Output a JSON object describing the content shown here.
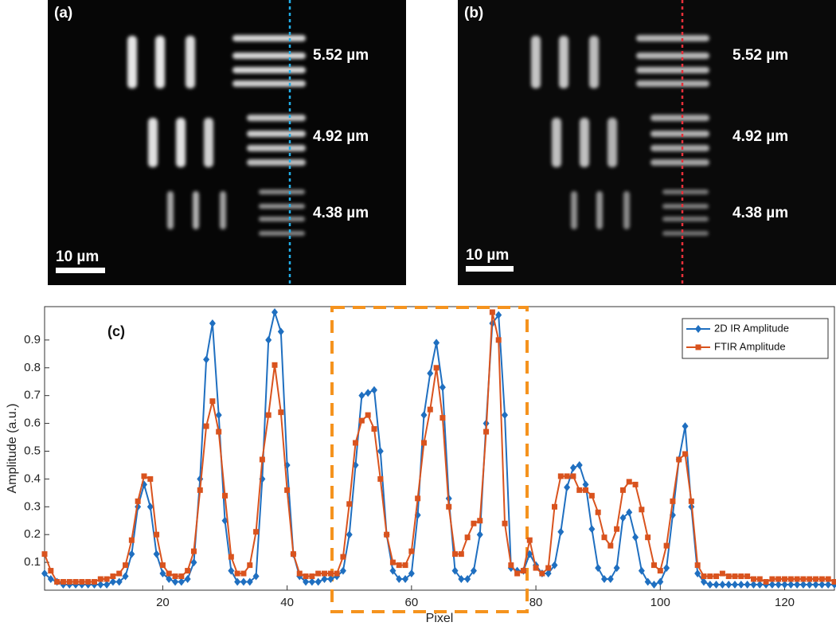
{
  "panels": [
    {
      "label": "(a)",
      "annotations": [
        "5.52 µm",
        "4.92 µm",
        "4.38 µm"
      ],
      "scale_bar": "10 µm"
    },
    {
      "label": "(b)",
      "annotations": [
        "5.52 µm",
        "4.92 µm",
        "4.38 µm"
      ],
      "scale_bar": "10 µm"
    }
  ],
  "chart_data": {
    "type": "line",
    "label": "(c)",
    "x_label": "Pixel",
    "y_label": "Amplitude (a.u.)",
    "xlim": [
      1,
      128
    ],
    "ylim": [
      0,
      1.02
    ],
    "xticks": [
      20,
      40,
      60,
      80,
      100,
      120
    ],
    "yticks": [
      0.1,
      0.2,
      0.3,
      0.4,
      0.5,
      0.6,
      0.7,
      0.8,
      0.9
    ],
    "legend": "upper right",
    "x": [
      1,
      2,
      3,
      4,
      5,
      6,
      7,
      8,
      9,
      10,
      11,
      12,
      13,
      14,
      15,
      16,
      17,
      18,
      19,
      20,
      21,
      22,
      23,
      24,
      25,
      26,
      27,
      28,
      29,
      30,
      31,
      32,
      33,
      34,
      35,
      36,
      37,
      38,
      39,
      40,
      41,
      42,
      43,
      44,
      45,
      46,
      47,
      48,
      49,
      50,
      51,
      52,
      53,
      54,
      55,
      56,
      57,
      58,
      59,
      60,
      61,
      62,
      63,
      64,
      65,
      66,
      67,
      68,
      69,
      70,
      71,
      72,
      73,
      74,
      75,
      76,
      77,
      78,
      79,
      80,
      81,
      82,
      83,
      84,
      85,
      86,
      87,
      88,
      89,
      90,
      91,
      92,
      93,
      94,
      95,
      96,
      97,
      98,
      99,
      100,
      101,
      102,
      103,
      104,
      105,
      106,
      107,
      108,
      109,
      110,
      111,
      112,
      113,
      114,
      115,
      116,
      117,
      118,
      119,
      120,
      121,
      122,
      123,
      124,
      125,
      126,
      127,
      128
    ],
    "series": [
      {
        "name": "2D IR Amplitude",
        "color": "#1f6fc0",
        "marker": "diamond",
        "values": [
          0.06,
          0.04,
          0.03,
          0.02,
          0.02,
          0.02,
          0.02,
          0.02,
          0.02,
          0.02,
          0.02,
          0.03,
          0.03,
          0.05,
          0.13,
          0.3,
          0.38,
          0.3,
          0.13,
          0.06,
          0.04,
          0.03,
          0.03,
          0.04,
          0.1,
          0.4,
          0.83,
          0.96,
          0.63,
          0.25,
          0.07,
          0.03,
          0.03,
          0.03,
          0.05,
          0.4,
          0.9,
          1.0,
          0.93,
          0.45,
          0.13,
          0.05,
          0.03,
          0.03,
          0.03,
          0.04,
          0.04,
          0.05,
          0.07,
          0.2,
          0.45,
          0.7,
          0.71,
          0.72,
          0.5,
          0.2,
          0.07,
          0.04,
          0.04,
          0.06,
          0.27,
          0.63,
          0.78,
          0.89,
          0.73,
          0.33,
          0.07,
          0.04,
          0.04,
          0.07,
          0.2,
          0.6,
          0.96,
          0.99,
          0.63,
          0.08,
          0.07,
          0.07,
          0.13,
          0.09,
          0.06,
          0.06,
          0.09,
          0.21,
          0.37,
          0.44,
          0.45,
          0.38,
          0.22,
          0.08,
          0.04,
          0.04,
          0.08,
          0.26,
          0.28,
          0.19,
          0.07,
          0.03,
          0.02,
          0.03,
          0.08,
          0.27,
          0.47,
          0.59,
          0.3,
          0.06,
          0.03,
          0.02,
          0.02,
          0.02,
          0.02,
          0.02,
          0.02,
          0.02,
          0.02,
          0.02,
          0.02,
          0.02,
          0.02,
          0.02,
          0.02,
          0.02,
          0.02,
          0.02,
          0.02,
          0.02,
          0.02,
          0.02
        ]
      },
      {
        "name": "FTIR Amplitude",
        "color": "#d9531e",
        "marker": "square",
        "values": [
          0.13,
          0.07,
          0.03,
          0.03,
          0.03,
          0.03,
          0.03,
          0.03,
          0.03,
          0.04,
          0.04,
          0.05,
          0.06,
          0.09,
          0.18,
          0.32,
          0.41,
          0.4,
          0.2,
          0.09,
          0.06,
          0.05,
          0.05,
          0.07,
          0.14,
          0.36,
          0.59,
          0.68,
          0.57,
          0.34,
          0.12,
          0.06,
          0.06,
          0.09,
          0.21,
          0.47,
          0.63,
          0.81,
          0.64,
          0.36,
          0.13,
          0.06,
          0.05,
          0.05,
          0.06,
          0.06,
          0.06,
          0.06,
          0.12,
          0.31,
          0.53,
          0.61,
          0.63,
          0.58,
          0.4,
          0.2,
          0.1,
          0.09,
          0.09,
          0.14,
          0.33,
          0.53,
          0.65,
          0.8,
          0.62,
          0.3,
          0.13,
          0.13,
          0.19,
          0.24,
          0.25,
          0.57,
          1.0,
          0.9,
          0.24,
          0.09,
          0.06,
          0.07,
          0.18,
          0.08,
          0.06,
          0.08,
          0.3,
          0.41,
          0.41,
          0.41,
          0.36,
          0.36,
          0.34,
          0.28,
          0.19,
          0.16,
          0.22,
          0.36,
          0.39,
          0.38,
          0.29,
          0.19,
          0.09,
          0.07,
          0.16,
          0.32,
          0.47,
          0.49,
          0.32,
          0.09,
          0.05,
          0.05,
          0.05,
          0.06,
          0.05,
          0.05,
          0.05,
          0.05,
          0.04,
          0.04,
          0.03,
          0.04,
          0.04,
          0.04,
          0.04,
          0.04,
          0.04,
          0.04,
          0.04,
          0.04,
          0.04,
          0.03
        ]
      }
    ]
  }
}
